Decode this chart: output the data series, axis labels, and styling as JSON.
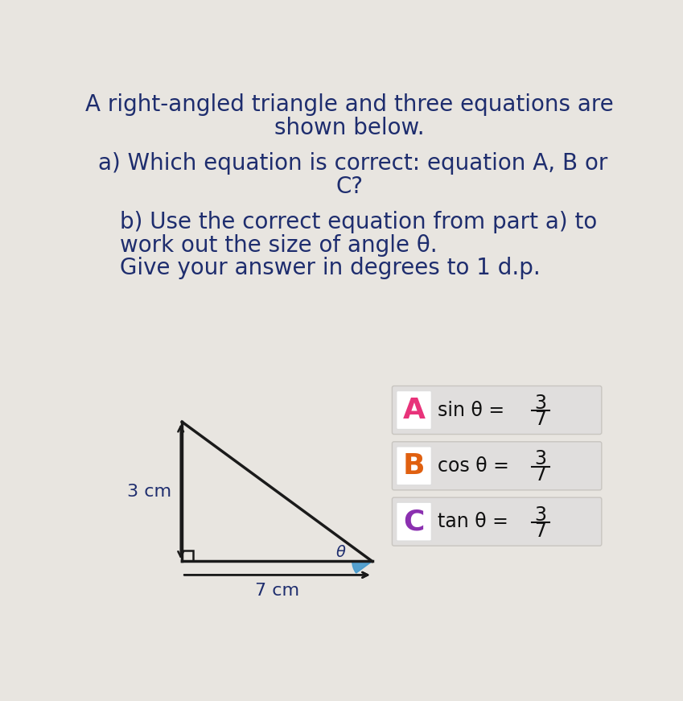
{
  "bg_color": "#e8e5e0",
  "title_line1": "A right-angled triangle and three equations are",
  "title_line2": "shown below.",
  "part_a1": "a) Which equation is correct: equation A, B or",
  "part_a2": "C?",
  "part_b1": "b) Use the correct equation from part a) to",
  "part_b2": "work out the size of angle θ.",
  "part_b3": "Give your answer in degrees to 1 d.p.",
  "label_3cm": "3 cm",
  "label_7cm": "7 cm",
  "label_theta": "θ",
  "eq_A_label": "A",
  "eq_A_color": "#e8337a",
  "eq_A_text": "sin θ = ",
  "eq_B_label": "B",
  "eq_B_color": "#e06010",
  "eq_B_text": "cos θ = ",
  "eq_C_label": "C",
  "eq_C_color": "#8b30b0",
  "eq_C_text": "tan θ = ",
  "frac_num": "3",
  "frac_den": "7",
  "box_bg": "#e0dedd",
  "text_color": "#1e2d6e",
  "triangle_color": "#1a1a1a",
  "right_angle_color": "#1a1a1a",
  "theta_fill_color": "#4499cc",
  "arrow_color": "#1a1a1a"
}
